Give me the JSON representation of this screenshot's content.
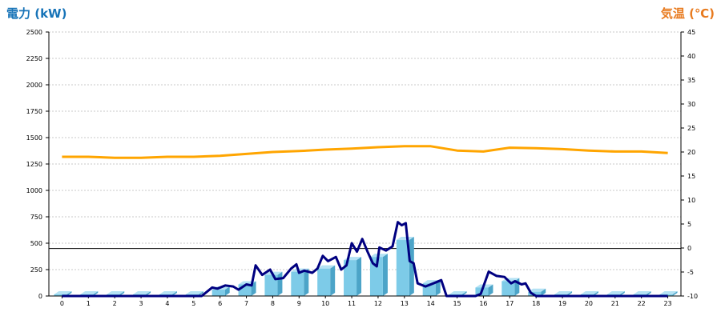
{
  "chart_data": {
    "type": "bar",
    "left_title": "電力 (kW)",
    "right_title": "気温 (℃)",
    "left_title_color": "#1874b8",
    "right_title_color": "#e87a1e",
    "categories": [
      "0",
      "1",
      "2",
      "3",
      "4",
      "5",
      "6",
      "7",
      "8",
      "9",
      "10",
      "11",
      "12",
      "13",
      "14",
      "15",
      "16",
      "17",
      "18",
      "19",
      "20",
      "21",
      "22",
      "23"
    ],
    "y_left": {
      "min": 0,
      "max": 2500,
      "ticks": [
        "0",
        "250",
        "500",
        "750",
        "1000",
        "1250",
        "1500",
        "1750",
        "2000",
        "2250",
        "2500"
      ]
    },
    "y_right": {
      "min": -10,
      "max": 45,
      "ticks": [
        "-10",
        "-5",
        "0",
        "5",
        "10",
        "15",
        "20",
        "25",
        "30",
        "35",
        "40",
        "45"
      ]
    },
    "reference_line": 450,
    "grid": true,
    "bar_series": {
      "axis": "left",
      "color": "#7dcbe8",
      "side_color": "#4ca4c8",
      "values": [
        0,
        0,
        0,
        0,
        0,
        0,
        60,
        110,
        200,
        230,
        260,
        340,
        370,
        530,
        120,
        0,
        80,
        140,
        40,
        0,
        0,
        0,
        0,
        0
      ]
    },
    "line_power": {
      "axis": "left",
      "color": "#000080",
      "points": [
        [
          0,
          0
        ],
        [
          1,
          0
        ],
        [
          2,
          0
        ],
        [
          3,
          0
        ],
        [
          4,
          0
        ],
        [
          5,
          0
        ],
        [
          5.3,
          0
        ],
        [
          5.7,
          80
        ],
        [
          5.9,
          70
        ],
        [
          6.2,
          100
        ],
        [
          6.5,
          90
        ],
        [
          6.7,
          60
        ],
        [
          7,
          110
        ],
        [
          7.2,
          100
        ],
        [
          7.35,
          290
        ],
        [
          7.6,
          200
        ],
        [
          7.9,
          250
        ],
        [
          8.1,
          160
        ],
        [
          8.4,
          170
        ],
        [
          8.7,
          260
        ],
        [
          8.9,
          300
        ],
        [
          9,
          220
        ],
        [
          9.2,
          240
        ],
        [
          9.5,
          220
        ],
        [
          9.7,
          260
        ],
        [
          9.9,
          380
        ],
        [
          10.1,
          330
        ],
        [
          10.4,
          370
        ],
        [
          10.6,
          250
        ],
        [
          10.8,
          290
        ],
        [
          11,
          500
        ],
        [
          11.2,
          420
        ],
        [
          11.4,
          540
        ],
        [
          11.6,
          420
        ],
        [
          11.8,
          310
        ],
        [
          11.95,
          280
        ],
        [
          12.05,
          460
        ],
        [
          12.3,
          430
        ],
        [
          12.55,
          470
        ],
        [
          12.75,
          700
        ],
        [
          12.9,
          670
        ],
        [
          13.05,
          690
        ],
        [
          13.2,
          330
        ],
        [
          13.35,
          310
        ],
        [
          13.5,
          120
        ],
        [
          13.8,
          90
        ],
        [
          14.1,
          120
        ],
        [
          14.4,
          150
        ],
        [
          14.6,
          0
        ],
        [
          15,
          0
        ],
        [
          15.7,
          0
        ],
        [
          15.9,
          20
        ],
        [
          16.2,
          230
        ],
        [
          16.5,
          190
        ],
        [
          16.8,
          180
        ],
        [
          17.05,
          120
        ],
        [
          17.2,
          140
        ],
        [
          17.45,
          110
        ],
        [
          17.6,
          120
        ],
        [
          17.8,
          30
        ],
        [
          18,
          0
        ],
        [
          19,
          0
        ],
        [
          20,
          0
        ],
        [
          21,
          0
        ],
        [
          22,
          0
        ],
        [
          23,
          0
        ]
      ]
    },
    "line_temperature": {
      "axis": "right",
      "color": "#ffa500",
      "points": [
        [
          0,
          19.0
        ],
        [
          1,
          19.0
        ],
        [
          2,
          18.8
        ],
        [
          3,
          18.8
        ],
        [
          4,
          19.0
        ],
        [
          5,
          19.0
        ],
        [
          6,
          19.2
        ],
        [
          7,
          19.6
        ],
        [
          8,
          20.0
        ],
        [
          9,
          20.2
        ],
        [
          10,
          20.5
        ],
        [
          11,
          20.7
        ],
        [
          12,
          21.0
        ],
        [
          13,
          21.2
        ],
        [
          14,
          21.2
        ],
        [
          15,
          20.3
        ],
        [
          16,
          20.1
        ],
        [
          17,
          20.9
        ],
        [
          18,
          20.8
        ],
        [
          19,
          20.6
        ],
        [
          20,
          20.3
        ],
        [
          21,
          20.1
        ],
        [
          22,
          20.1
        ],
        [
          23,
          19.8
        ]
      ]
    }
  }
}
